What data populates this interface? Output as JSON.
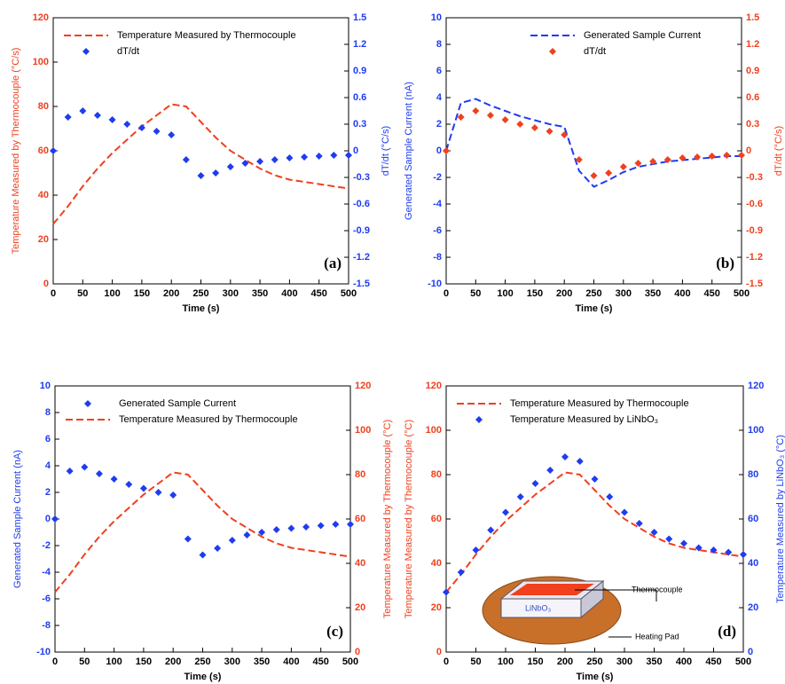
{
  "chart_data": [
    {
      "type": "line",
      "panel_label": "(a)",
      "xlabel": "Time (s)",
      "ylabel": "Temperature Measured by Thermocouple (°C/s)",
      "y2label": "dT/dt (°C/s)",
      "xlim": [
        0,
        500
      ],
      "xticks": [
        0,
        50,
        100,
        150,
        200,
        250,
        300,
        350,
        400,
        450,
        500
      ],
      "ylim": [
        0,
        120
      ],
      "yticks": [
        0,
        20,
        40,
        60,
        80,
        100,
        120
      ],
      "y2lim": [
        -1.5,
        1.5
      ],
      "y2ticks": [
        -1.5,
        -1.2,
        -0.9,
        -0.6,
        -0.3,
        0,
        0.3,
        0.6,
        0.9,
        1.2,
        1.5
      ],
      "legend": "upper left",
      "x": [
        0,
        25,
        50,
        75,
        100,
        125,
        150,
        175,
        200,
        225,
        250,
        275,
        300,
        325,
        350,
        375,
        400,
        425,
        450,
        475,
        500
      ],
      "series": [
        {
          "name": "Temperature Measured by Thermocouple",
          "color": "#f0401e",
          "style": "dashed",
          "axis": "y",
          "values": [
            27,
            35,
            44,
            52,
            59,
            65,
            71,
            76,
            81,
            80,
            73,
            66,
            60,
            56,
            52,
            49,
            47,
            46,
            45,
            44,
            43
          ]
        },
        {
          "name": "dT/dt",
          "color": "#1e3cf0",
          "style": "markers",
          "axis": "y2",
          "values": [
            0,
            0.38,
            0.45,
            0.4,
            0.35,
            0.3,
            0.26,
            0.22,
            0.18,
            -0.1,
            -0.28,
            -0.25,
            -0.18,
            -0.14,
            -0.12,
            -0.1,
            -0.08,
            -0.07,
            -0.06,
            -0.05,
            -0.05
          ]
        }
      ]
    },
    {
      "type": "line",
      "panel_label": "(b)",
      "xlabel": "Time (s)",
      "ylabel": "Generated Sample Current (nA)",
      "y2label": "dT/dt (°C/s)",
      "xlim": [
        0,
        500
      ],
      "xticks": [
        0,
        50,
        100,
        150,
        200,
        250,
        300,
        350,
        400,
        450,
        500
      ],
      "ylim": [
        -10,
        10
      ],
      "yticks": [
        -10,
        -8,
        -6,
        -4,
        -2,
        0,
        2,
        4,
        6,
        8,
        10
      ],
      "y2lim": [
        -1.5,
        1.5
      ],
      "y2ticks": [
        -1.5,
        -1.2,
        -0.9,
        -0.6,
        -0.3,
        0,
        0.3,
        0.6,
        0.9,
        1.2,
        1.5
      ],
      "legend": "upper center",
      "x": [
        0,
        25,
        50,
        75,
        100,
        125,
        150,
        175,
        200,
        225,
        250,
        275,
        300,
        325,
        350,
        375,
        400,
        425,
        450,
        475,
        500
      ],
      "series": [
        {
          "name": "Generated Sample Current",
          "color": "#1e3cf0",
          "style": "dashed",
          "axis": "y",
          "values": [
            0,
            3.6,
            3.9,
            3.4,
            3.0,
            2.6,
            2.3,
            2.0,
            1.8,
            -1.5,
            -2.7,
            -2.2,
            -1.6,
            -1.2,
            -1.0,
            -0.8,
            -0.7,
            -0.6,
            -0.5,
            -0.4,
            -0.4
          ]
        },
        {
          "name": "dT/dt",
          "color": "#f0401e",
          "style": "markers",
          "axis": "y2",
          "values": [
            0,
            0.38,
            0.45,
            0.4,
            0.35,
            0.3,
            0.26,
            0.22,
            0.18,
            -0.1,
            -0.28,
            -0.25,
            -0.18,
            -0.14,
            -0.12,
            -0.1,
            -0.08,
            -0.07,
            -0.06,
            -0.05,
            -0.05
          ]
        }
      ]
    },
    {
      "type": "line",
      "panel_label": "(c)",
      "xlabel": "Time (s)",
      "ylabel": "Generated Sample Current (nA)",
      "y2label": "Temperature Measured by Thermocouple (°C)",
      "xlim": [
        0,
        500
      ],
      "xticks": [
        0,
        50,
        100,
        150,
        200,
        250,
        300,
        350,
        400,
        450,
        500
      ],
      "ylim": [
        -10,
        10
      ],
      "yticks": [
        -10,
        -8,
        -6,
        -4,
        -2,
        0,
        2,
        4,
        6,
        8,
        10
      ],
      "y2lim": [
        0,
        120
      ],
      "y2ticks": [
        0,
        20,
        40,
        60,
        80,
        100,
        120
      ],
      "legend": "upper left",
      "x": [
        0,
        25,
        50,
        75,
        100,
        125,
        150,
        175,
        200,
        225,
        250,
        275,
        300,
        325,
        350,
        375,
        400,
        425,
        450,
        475,
        500
      ],
      "series": [
        {
          "name": "Generated Sample Current",
          "color": "#1e3cf0",
          "style": "markers",
          "axis": "y",
          "values": [
            0,
            3.6,
            3.9,
            3.4,
            3.0,
            2.6,
            2.3,
            2.0,
            1.8,
            -1.5,
            -2.7,
            -2.2,
            -1.6,
            -1.2,
            -1.0,
            -0.8,
            -0.7,
            -0.6,
            -0.5,
            -0.4,
            -0.4
          ]
        },
        {
          "name": "Temperature Measured by Thermocouple",
          "color": "#f0401e",
          "style": "dashed",
          "axis": "y2",
          "values": [
            27,
            35,
            44,
            52,
            59,
            65,
            71,
            76,
            81,
            80,
            73,
            66,
            60,
            56,
            52,
            49,
            47,
            46,
            45,
            44,
            43
          ]
        }
      ]
    },
    {
      "type": "line",
      "panel_label": "(d)",
      "xlabel": "Time (s)",
      "ylabel": "Temperature Measured by Thermocouple (°C)",
      "y2label": "Temperature Measured by LiNbO₃ (°C)",
      "xlim": [
        0,
        500
      ],
      "xticks": [
        0,
        50,
        100,
        150,
        200,
        250,
        300,
        350,
        400,
        450,
        500
      ],
      "ylim": [
        0,
        120
      ],
      "yticks": [
        0,
        20,
        40,
        60,
        80,
        100,
        120
      ],
      "y2lim": [
        0,
        120
      ],
      "y2ticks": [
        0,
        20,
        40,
        60,
        80,
        100,
        120
      ],
      "legend": "upper left",
      "x": [
        0,
        25,
        50,
        75,
        100,
        125,
        150,
        175,
        200,
        225,
        250,
        275,
        300,
        325,
        350,
        375,
        400,
        425,
        450,
        475,
        500
      ],
      "series": [
        {
          "name": "Temperature Measured by Thermocouple",
          "color": "#f0401e",
          "style": "dashed",
          "axis": "y",
          "values": [
            27,
            35,
            44,
            52,
            59,
            65,
            71,
            76,
            81,
            80,
            73,
            66,
            60,
            56,
            52,
            49,
            47,
            46,
            45,
            44,
            43
          ]
        },
        {
          "name": "Temperature Measured by LiNbO₃",
          "color": "#1e3cf0",
          "style": "markers",
          "axis": "y2",
          "values": [
            27,
            36,
            46,
            55,
            63,
            70,
            76,
            82,
            88,
            86,
            78,
            70,
            63,
            58,
            54,
            51,
            49,
            47,
            46,
            45,
            44
          ]
        }
      ],
      "inset": {
        "thermocouple": "Thermocouple",
        "heating_pad": "Heating Pad",
        "crystal": "LiNbO₃"
      }
    }
  ]
}
